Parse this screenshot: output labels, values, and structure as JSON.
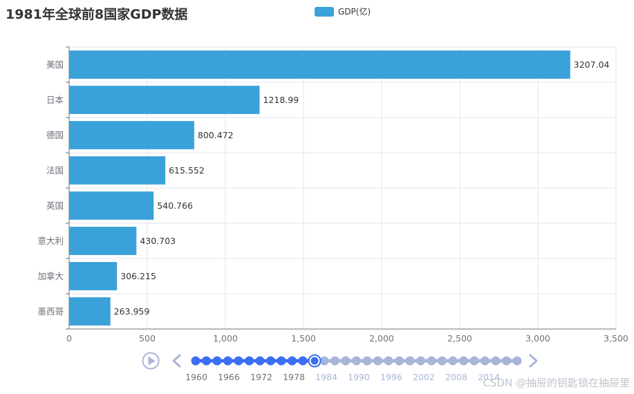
{
  "title": "1981年全球前8国家GDP数据",
  "legend": {
    "label": "GDP(亿)",
    "color": "#3aa1d9"
  },
  "chart_data": {
    "type": "bar",
    "orientation": "horizontal",
    "title": "1981年全球前8国家GDP数据",
    "categories": [
      "美国",
      "日本",
      "德国",
      "法国",
      "英国",
      "意大利",
      "加拿大",
      "墨西哥"
    ],
    "series": [
      {
        "name": "GDP(亿)",
        "values": [
          3207.04,
          1218.99,
          800.472,
          615.552,
          540.766,
          430.703,
          306.215,
          263.959
        ]
      }
    ],
    "data_labels": [
      "3207.04",
      "1218.99",
      "800.472",
      "615.552",
      "540.766",
      "430.703",
      "306.215",
      "263.959"
    ],
    "xlim": [
      0,
      3500
    ],
    "x_ticks": [
      "0",
      "500",
      "1,000",
      "1,500",
      "2,000",
      "2,500",
      "3,000",
      "3,500"
    ],
    "grid": true,
    "legend_position": "top-center"
  },
  "timeline": {
    "labels": [
      "1960",
      "1966",
      "1972",
      "1978",
      "1984",
      "1990",
      "1996",
      "2002",
      "2008",
      "2014"
    ],
    "current": "1981",
    "active_label_count": 4,
    "progress": 0.37,
    "dot_count": 31,
    "active_color": "#3b6ef5",
    "inactive_color": "#a7b5d8"
  },
  "watermark": "CSDN @抽屉的钥匙锁在抽屉里"
}
